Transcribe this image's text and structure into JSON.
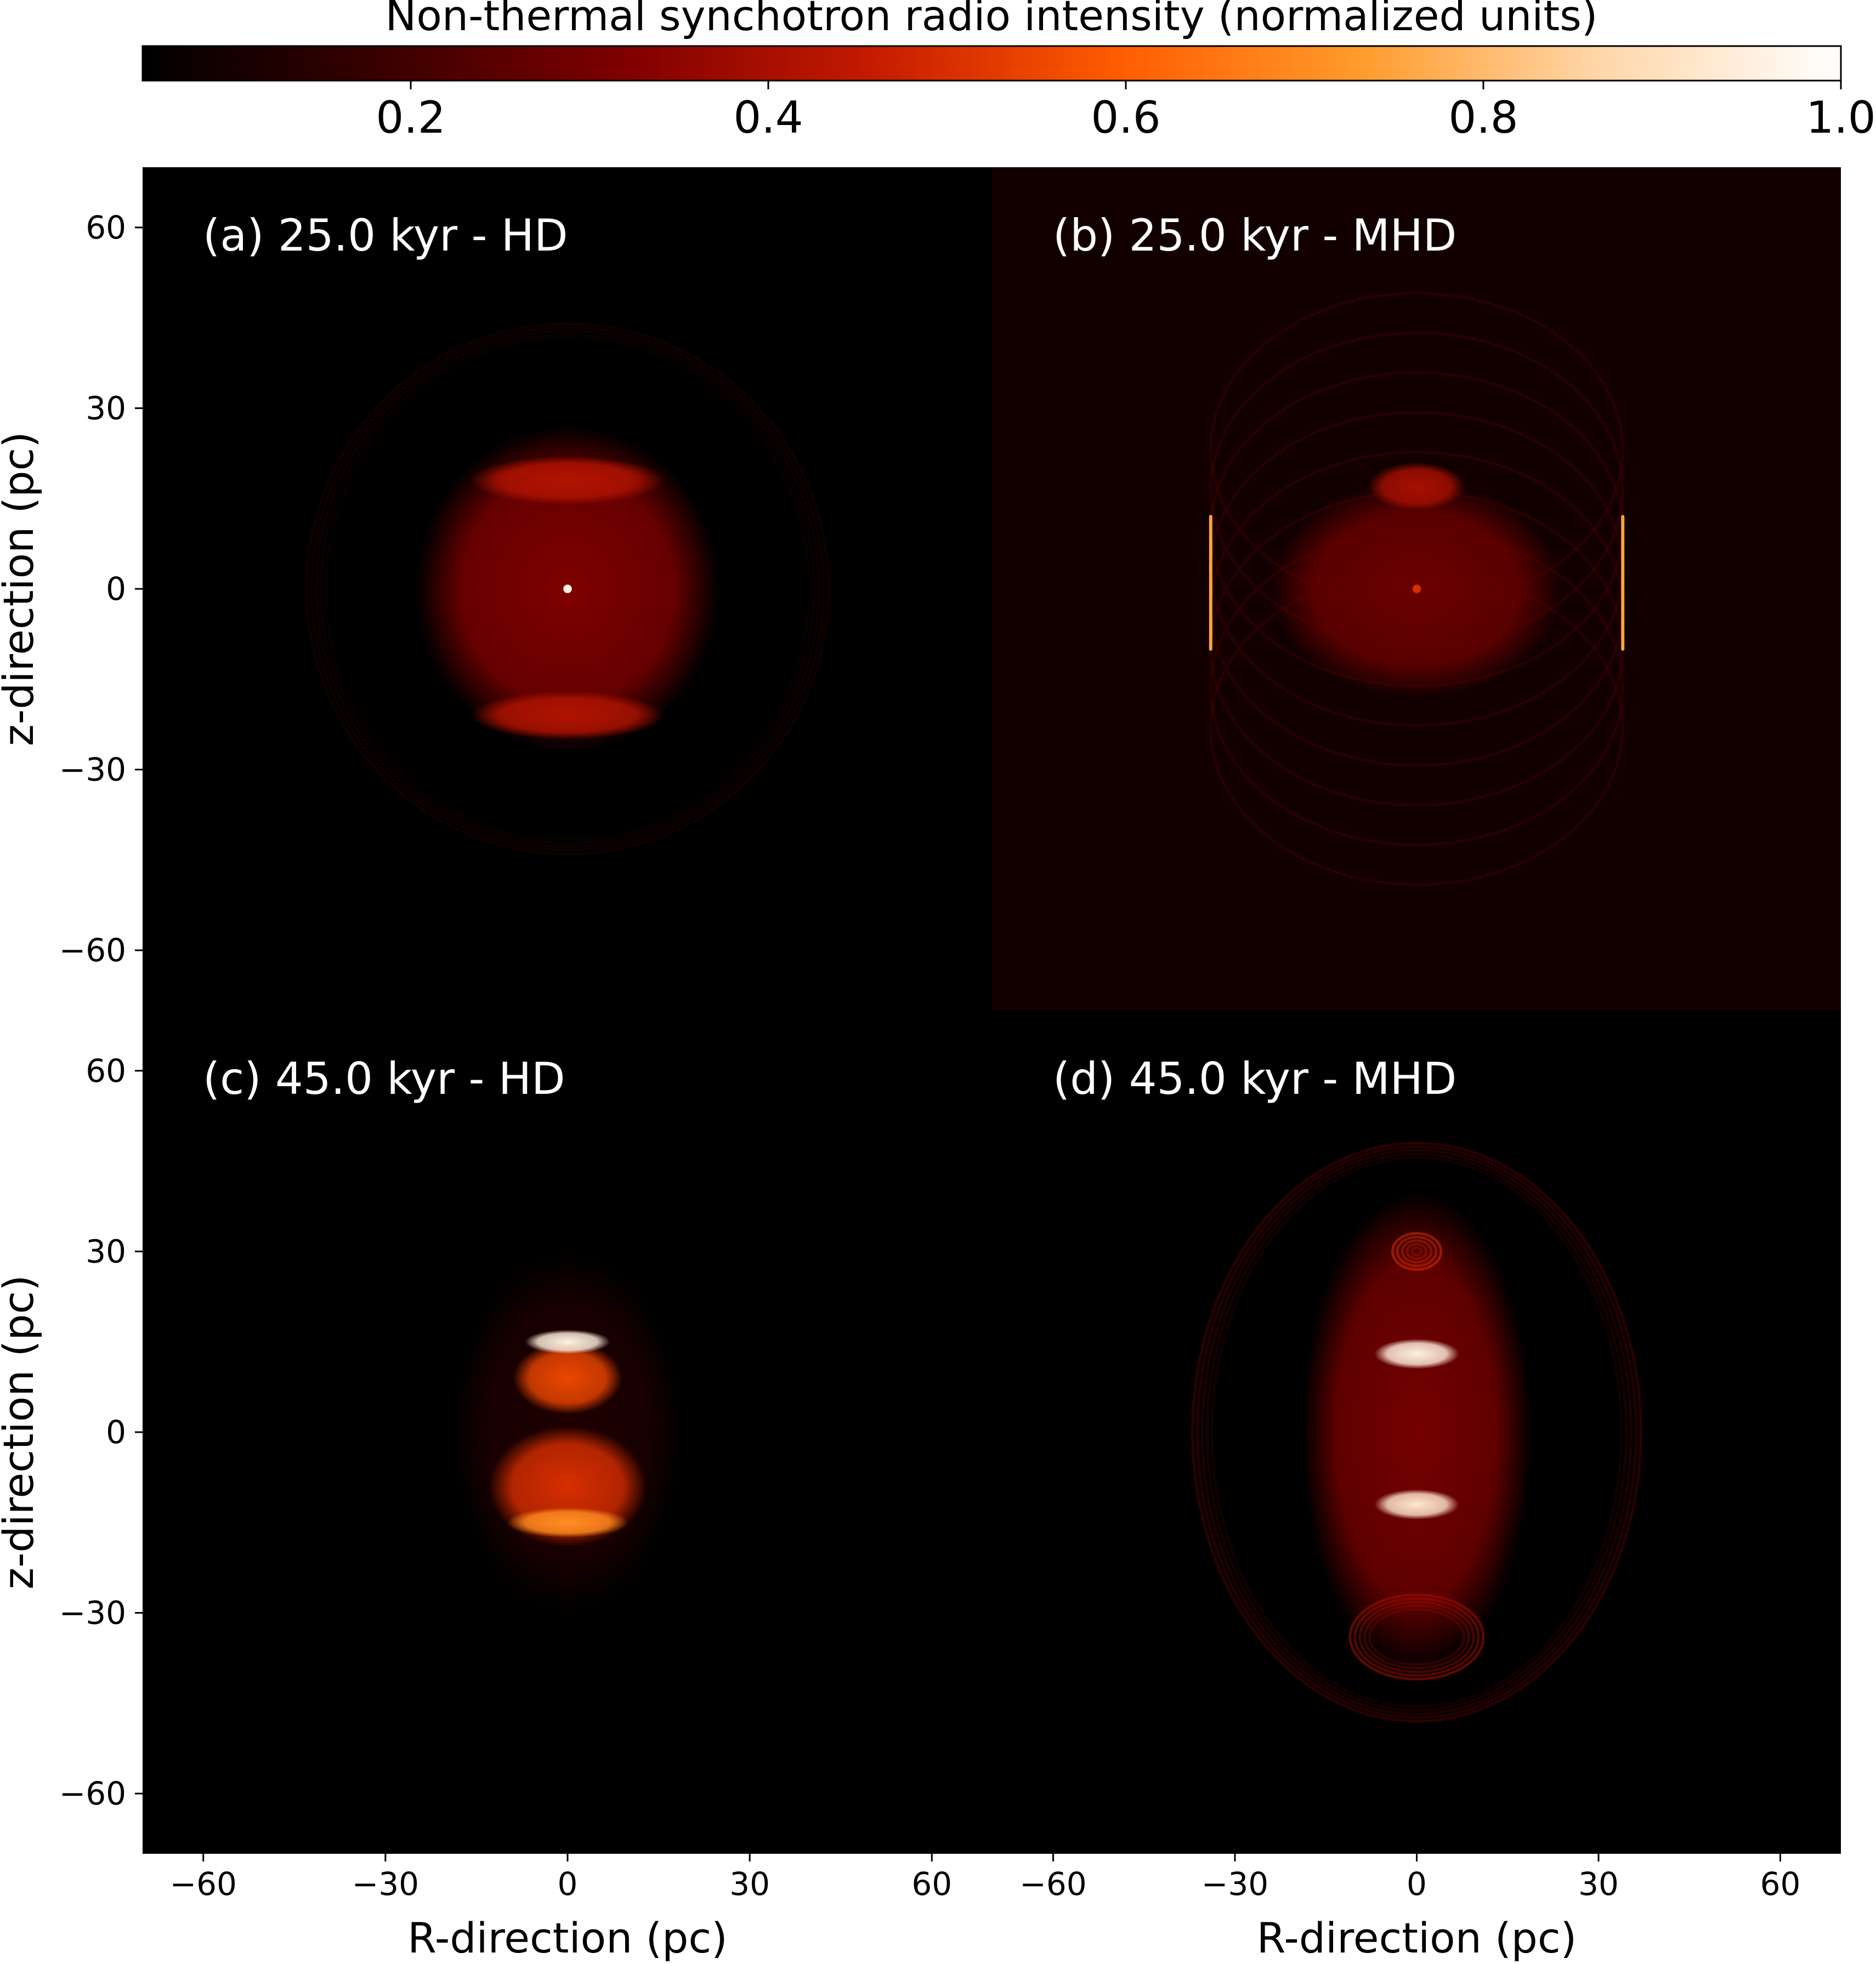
{
  "colorbar": {
    "label": "Non-thermal synchotron radio intensity (normalized units)",
    "range": [
      0.05,
      1.0
    ],
    "ticks": [
      0.2,
      0.4,
      0.6,
      0.8,
      1.0
    ],
    "tick_labels": [
      "0.2",
      "0.4",
      "0.6",
      "0.8",
      "1.0"
    ],
    "colormap": [
      "#000000",
      "#3a0000",
      "#800000",
      "#c41a00",
      "#ff5a00",
      "#ff9a2a",
      "#ffd6a8",
      "#ffffff"
    ]
  },
  "chart_data": [
    {
      "type": "heatmap",
      "id": "a",
      "title": "(a) 25.0 kyr - HD",
      "xlabel": "",
      "ylabel": "z-direction (pc)",
      "xlim": [
        -70,
        70
      ],
      "ylim": [
        -70,
        70
      ],
      "x_ticks": [
        -60,
        -30,
        0,
        30,
        60
      ],
      "y_ticks": [
        -60,
        -30,
        0,
        30,
        60
      ],
      "x_tick_labels": [],
      "y_tick_labels": [
        "−60",
        "−30",
        "0",
        "30",
        "60"
      ],
      "features": [
        {
          "kind": "ellipse-shell",
          "cx": 0,
          "cz": 0,
          "rx": 43,
          "rz": 44,
          "intensity": 0.12
        },
        {
          "kind": "ellipse-fill",
          "cx": 0,
          "cz": 0,
          "rx": 25,
          "rz": 27,
          "intensity": 0.32
        },
        {
          "kind": "ellipse-fill",
          "cx": 0,
          "cz": 18,
          "rx": 16,
          "rz": 4,
          "intensity": 0.42
        },
        {
          "kind": "ellipse-fill",
          "cx": 0,
          "cz": -21,
          "rx": 16,
          "rz": 4,
          "intensity": 0.42
        },
        {
          "kind": "spot",
          "cx": 0,
          "cz": 0,
          "r": 0.7,
          "intensity": 0.95
        }
      ]
    },
    {
      "type": "heatmap",
      "id": "b",
      "title": "(b) 25.0 kyr - MHD",
      "xlabel": "",
      "ylabel": "",
      "xlim": [
        -70,
        70
      ],
      "ylim": [
        -70,
        70
      ],
      "x_ticks": [
        -60,
        -30,
        0,
        30,
        60
      ],
      "y_ticks": [
        -60,
        -30,
        0,
        30,
        60
      ],
      "x_tick_labels": [],
      "y_tick_labels": [],
      "features": [
        {
          "kind": "barrel",
          "cx": 0,
          "cz": 0,
          "rx": 34,
          "rz": 40,
          "intensity": 0.2
        },
        {
          "kind": "edge-bright",
          "x": -34,
          "z0": -10,
          "z1": 12,
          "intensity": 0.75
        },
        {
          "kind": "edge-bright",
          "x": 34,
          "z0": -10,
          "z1": 12,
          "intensity": 0.75
        },
        {
          "kind": "ellipse-fill",
          "cx": 0,
          "cz": 0,
          "rx": 24,
          "rz": 18,
          "intensity": 0.28
        },
        {
          "kind": "ellipse-fill",
          "cx": 0,
          "cz": 17,
          "rx": 8,
          "rz": 4,
          "intensity": 0.4
        },
        {
          "kind": "spot",
          "cx": 0,
          "cz": 0,
          "r": 0.7,
          "intensity": 0.5
        }
      ]
    },
    {
      "type": "heatmap",
      "id": "c",
      "title": "(c) 45.0 kyr - HD",
      "xlabel": "R-direction (pc)",
      "ylabel": "z-direction (pc)",
      "xlim": [
        -70,
        70
      ],
      "ylim": [
        -70,
        70
      ],
      "x_ticks": [
        -60,
        -30,
        0,
        30,
        60
      ],
      "y_ticks": [
        -60,
        -30,
        0,
        30,
        60
      ],
      "x_tick_labels": [
        "−60",
        "−30",
        "0",
        "30",
        "60"
      ],
      "y_tick_labels": [
        "−60",
        "−30",
        "0",
        "30",
        "60"
      ],
      "features": [
        {
          "kind": "ellipse-fill",
          "cx": 0,
          "cz": 0,
          "rx": 19,
          "rz": 30,
          "intensity": 0.12
        },
        {
          "kind": "ellipse-fill",
          "cx": 0,
          "cz": -9,
          "rx": 13,
          "rz": 10,
          "intensity": 0.5
        },
        {
          "kind": "ellipse-fill",
          "cx": 0,
          "cz": 9,
          "rx": 9,
          "rz": 6,
          "intensity": 0.55
        },
        {
          "kind": "ellipse-fill",
          "cx": 0,
          "cz": 15,
          "rx": 7,
          "rz": 2,
          "intensity": 0.95
        },
        {
          "kind": "ellipse-fill",
          "cx": 0,
          "cz": -15,
          "rx": 10,
          "rz": 2.5,
          "intensity": 0.7
        }
      ]
    },
    {
      "type": "heatmap",
      "id": "d",
      "title": "(d) 45.0 kyr - MHD",
      "xlabel": "R-direction (pc)",
      "ylabel": "",
      "xlim": [
        -70,
        70
      ],
      "ylim": [
        -70,
        70
      ],
      "x_ticks": [
        -60,
        -30,
        0,
        30,
        60
      ],
      "y_ticks": [
        -60,
        -30,
        0,
        30,
        60
      ],
      "x_tick_labels": [
        "−60",
        "−30",
        "0",
        "30",
        "60"
      ],
      "y_tick_labels": [],
      "features": [
        {
          "kind": "ellipse-shell",
          "cx": 0,
          "cz": 0,
          "rx": 37,
          "rz": 48,
          "intensity": 0.22
        },
        {
          "kind": "ellipse-fill",
          "cx": 0,
          "cz": 0,
          "rx": 19,
          "rz": 40,
          "intensity": 0.3
        },
        {
          "kind": "ellipse-fill",
          "cx": 0,
          "cz": 13,
          "rx": 7,
          "rz": 2.5,
          "intensity": 0.95
        },
        {
          "kind": "ellipse-fill",
          "cx": 0,
          "cz": -12,
          "rx": 7,
          "rz": 2.5,
          "intensity": 0.92
        },
        {
          "kind": "ellipse-shell",
          "cx": 0,
          "cz": -34,
          "rx": 11,
          "rz": 7,
          "intensity": 0.4
        },
        {
          "kind": "ellipse-shell",
          "cx": 0,
          "cz": 30,
          "rx": 4,
          "rz": 3,
          "intensity": 0.5
        }
      ]
    }
  ]
}
